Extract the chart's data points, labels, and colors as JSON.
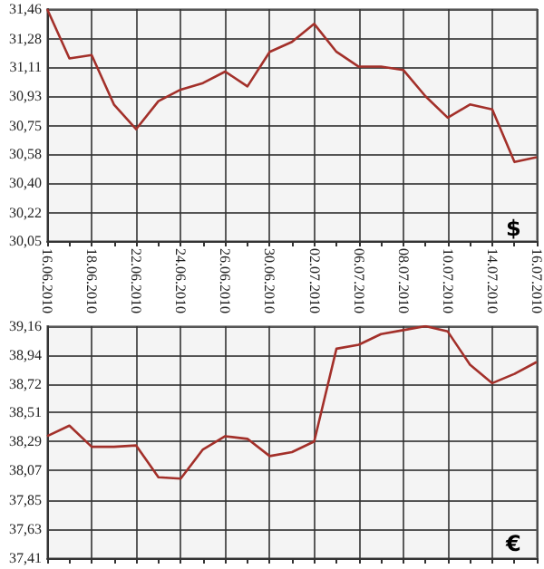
{
  "chart_data": [
    {
      "type": "line",
      "categories": [
        "16.06.2010",
        null,
        "18.06.2010",
        null,
        "22.06.2010",
        null,
        "24.06.2010",
        null,
        "26.06.2010",
        null,
        "30.06.2010",
        null,
        "02.07.2010",
        null,
        "06.07.2010",
        null,
        "08.07.2010",
        null,
        "10.07.2010",
        null,
        "14.07.2010",
        null,
        "16.07.2010"
      ],
      "series": [
        {
          "color": "#a3302a",
          "values": [
            31.46,
            31.16,
            31.18,
            30.88,
            30.73,
            30.9,
            30.97,
            31.01,
            31.08,
            30.99,
            31.2,
            31.26,
            31.37,
            31.2,
            31.11,
            31.11,
            31.09,
            30.93,
            30.8,
            30.88,
            30.85,
            30.53,
            30.56
          ]
        }
      ],
      "ylim": [
        30.05,
        31.46
      ],
      "yticks": [
        {
          "value": 30.05,
          "label": "30,05"
        },
        {
          "value": 30.22,
          "label": "30,22"
        },
        {
          "value": 30.4,
          "label": "30,40"
        },
        {
          "value": 30.58,
          "label": "30,58"
        },
        {
          "value": 30.75,
          "label": "30,75"
        },
        {
          "value": 30.93,
          "label": "30,93"
        },
        {
          "value": 31.11,
          "label": "31,11"
        },
        {
          "value": 31.28,
          "label": "31,28"
        },
        {
          "value": 31.46,
          "label": "31,46"
        }
      ],
      "annotations": [
        "$"
      ],
      "grid": true,
      "marker": "none"
    },
    {
      "type": "line",
      "categories": [
        "16.06.2010",
        null,
        "18.06.2010",
        null,
        "22.06.2010",
        null,
        "24.06.2010",
        null,
        "26.06.2010",
        null,
        "30.06.2010",
        null,
        "02.07.2010",
        null,
        "06.07.2010",
        null,
        "08.07.2010",
        null,
        "10.07.2010",
        null,
        "14.07.2010",
        null,
        "16.07.2010"
      ],
      "series": [
        {
          "color": "#a3302a",
          "values": [
            38.33,
            38.41,
            38.25,
            38.25,
            38.26,
            38.02,
            38.01,
            38.23,
            38.33,
            38.31,
            38.18,
            38.21,
            38.29,
            38.99,
            39.02,
            39.1,
            39.13,
            39.16,
            39.12,
            38.87,
            38.73,
            38.8,
            38.89
          ]
        }
      ],
      "ylim": [
        37.41,
        39.16
      ],
      "yticks": [
        {
          "value": 37.41,
          "label": "37,41"
        },
        {
          "value": 37.63,
          "label": "37,63"
        },
        {
          "value": 37.85,
          "label": "37,85"
        },
        {
          "value": 38.07,
          "label": "38,07"
        },
        {
          "value": 38.29,
          "label": "38,29"
        },
        {
          "value": 38.51,
          "label": "38,51"
        },
        {
          "value": 38.72,
          "label": "38,72"
        },
        {
          "value": 38.94,
          "label": "38,94"
        },
        {
          "value": 39.16,
          "label": "39,16"
        }
      ],
      "annotations": [
        "€"
      ],
      "grid": true,
      "marker": "none",
      "tick_labels": "y"
    }
  ]
}
